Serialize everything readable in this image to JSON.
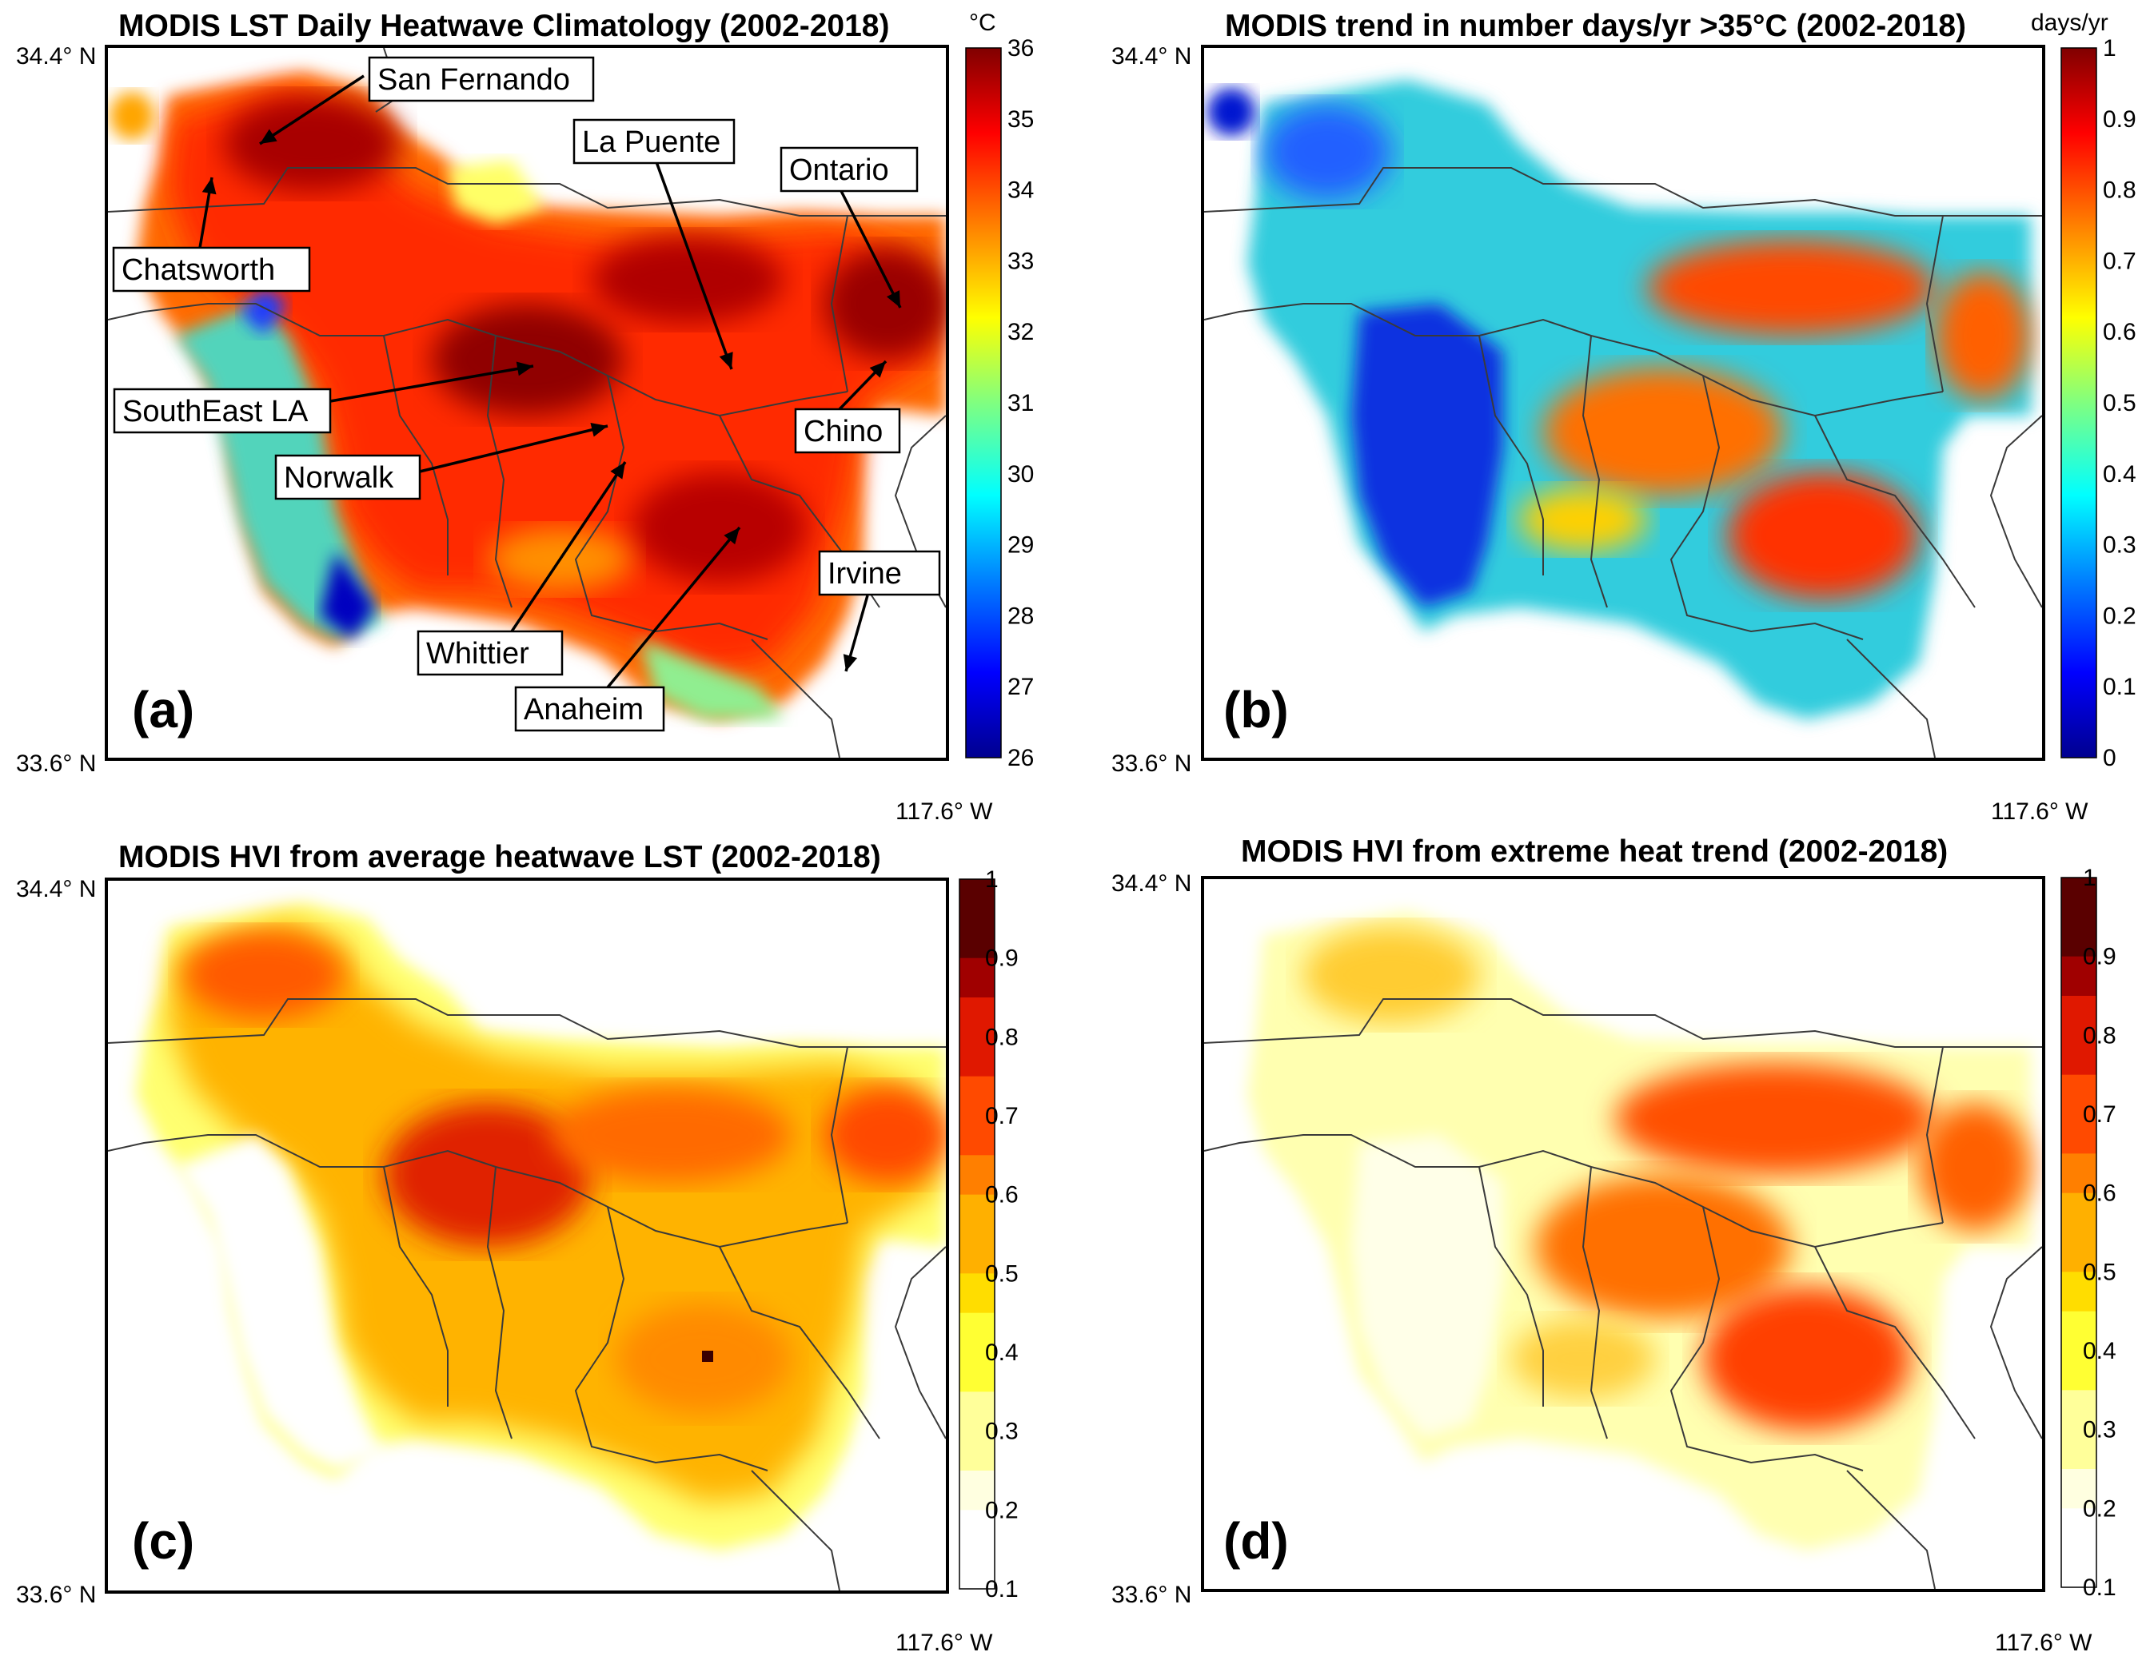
{
  "figure": {
    "panels": [
      {
        "id": "a",
        "letter": "(a)",
        "title": "MODIS LST Daily Heatwave Climatology (2002-2018)",
        "unit": "°C",
        "lat_top": "34.4° N",
        "lat_bottom": "33.6° N",
        "lon_label": "",
        "colormap": "jet",
        "discrete": false,
        "colorbar_ticks": [
          "36",
          "35",
          "34",
          "33",
          "32",
          "31",
          "30",
          "29",
          "28",
          "27",
          "26"
        ],
        "cities": [
          {
            "name": "San Fernando"
          },
          {
            "name": "Chatsworth"
          },
          {
            "name": "La Puente"
          },
          {
            "name": "Ontario"
          },
          {
            "name": "SouthEast LA"
          },
          {
            "name": "Chino"
          },
          {
            "name": "Norwalk"
          },
          {
            "name": "Irvine"
          },
          {
            "name": "Whittier"
          },
          {
            "name": "Anaheim"
          }
        ]
      },
      {
        "id": "b",
        "letter": "(b)",
        "title": "MODIS trend in number days/yr >35°C (2002-2018)",
        "unit": "days/yr",
        "lat_top": "34.4° N",
        "lat_bottom": "33.6° N",
        "lon_label": "117.6° W",
        "colormap": "jet",
        "discrete": false,
        "colorbar_ticks": [
          "1",
          "0.9",
          "0.8",
          "0.7",
          "0.6",
          "0.5",
          "0.4",
          "0.3",
          "0.2",
          "0.1",
          "0"
        ]
      },
      {
        "id": "c",
        "letter": "(c)",
        "title": "MODIS HVI from average heatwave LST (2002-2018)",
        "unit": "",
        "lat_top": "34.4° N",
        "lat_bottom": "33.6° N",
        "lon_label": "117.6° W",
        "colormap": "hot",
        "discrete": true,
        "colorbar_ticks": [
          "1",
          "0.9",
          "0.8",
          "0.7",
          "0.6",
          "0.5",
          "0.4",
          "0.3",
          "0.2",
          "0.1"
        ]
      },
      {
        "id": "d",
        "letter": "(d)",
        "title": "MODIS HVI from extreme heat trend (2002-2018)",
        "unit": "",
        "lat_top": "34.4° N",
        "lat_bottom": "33.6° N",
        "lon_label": "117.6° W",
        "colormap": "hot",
        "discrete": true,
        "colorbar_ticks": [
          "1",
          "0.9",
          "0.8",
          "0.7",
          "0.6",
          "0.5",
          "0.4",
          "0.3",
          "0.2",
          "0.1"
        ]
      }
    ],
    "bottom_lon_label_a": "117.6° W",
    "colors": {
      "jet": [
        "#00008f",
        "#0000ff",
        "#0080ff",
        "#00ffff",
        "#80ff80",
        "#ffff00",
        "#ff8000",
        "#ff0000",
        "#800000"
      ],
      "hot_bins": [
        "#ffffff",
        "#ffffe0",
        "#ffff9a",
        "#ffff33",
        "#ffdd00",
        "#ffb000",
        "#ff7f00",
        "#ff4a00",
        "#e01800",
        "#a00000",
        "#5a0000"
      ],
      "border": "#3a3a3a"
    }
  }
}
